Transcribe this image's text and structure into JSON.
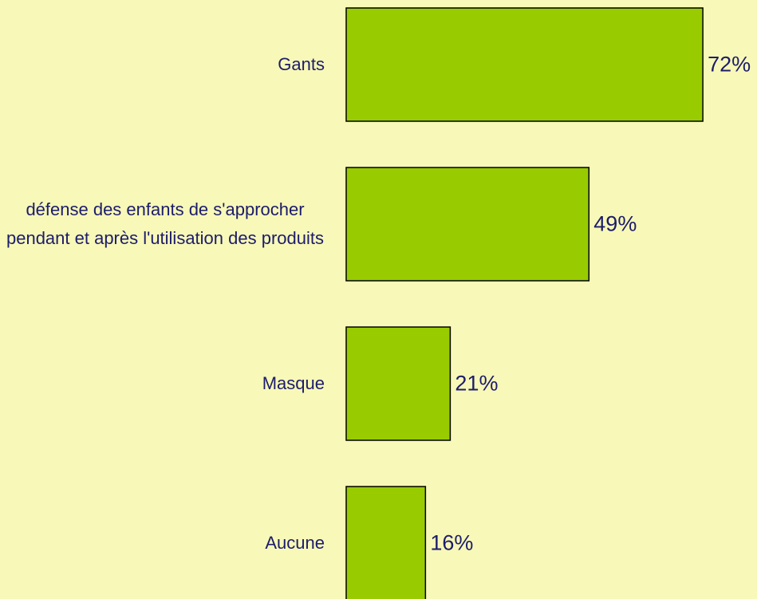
{
  "chart_data": {
    "type": "bar",
    "orientation": "horizontal",
    "categories": [
      "Gants",
      "défense des enfants de s'approcher pendant et après l'utilisation des produits",
      "Masque",
      "Aucune"
    ],
    "values": [
      72,
      49,
      21,
      16
    ],
    "value_labels": [
      "72%",
      "49%",
      "21%",
      "16%"
    ],
    "color": "#99cc00"
  }
}
